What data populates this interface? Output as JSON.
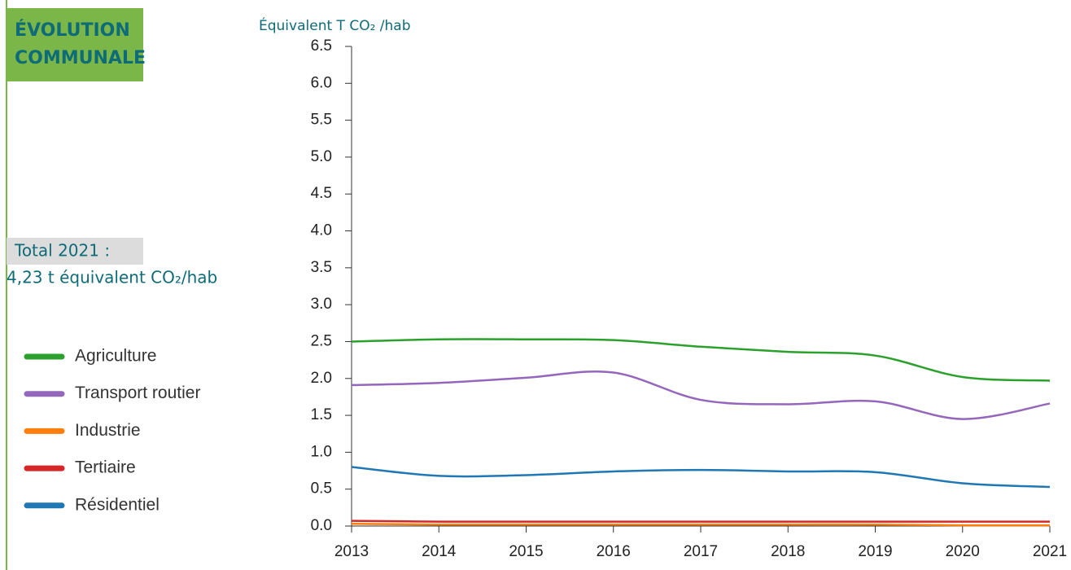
{
  "chart_data": {
    "type": "line",
    "title": "ÉVOLUTION COMMUNALE",
    "total_label": "Total 2021 :",
    "total_value": "4,23 t équivalent CO₂/hab",
    "y_label": "Équivalent T CO₂ /hab",
    "x": [
      2013,
      2014,
      2015,
      2016,
      2017,
      2018,
      2019,
      2020,
      2021
    ],
    "xlim": [
      2013,
      2021
    ],
    "xticks": [
      2013,
      2014,
      2015,
      2016,
      2017,
      2018,
      2019,
      2020,
      2021
    ],
    "ylim": [
      0,
      6.5
    ],
    "yticks": [
      {
        "value": 0,
        "label": "0.0"
      },
      0.5,
      {
        "value": 1,
        "label": "1.0"
      },
      1.5,
      {
        "value": 2,
        "label": "2.0"
      },
      2.5,
      {
        "value": 3,
        "label": "3.0"
      },
      3.5,
      {
        "value": 4,
        "label": "4.0"
      },
      4.5,
      {
        "value": 5,
        "label": "5.0"
      },
      5.5,
      {
        "value": 6,
        "label": "6.0"
      },
      6.5
    ],
    "series": [
      {
        "name": "Agriculture",
        "color": "#2ca02c",
        "values": [
          2.5,
          2.53,
          2.53,
          2.52,
          2.43,
          2.36,
          2.31,
          2.02,
          1.97
        ]
      },
      {
        "name": "Transport routier",
        "color": "#9467bd",
        "values": [
          1.91,
          1.94,
          2.01,
          2.08,
          1.71,
          1.65,
          1.69,
          1.45,
          1.66
        ]
      },
      {
        "name": "Industrie",
        "color": "#ff7f0e",
        "values": [
          0.03,
          0.02,
          0.02,
          0.02,
          0.02,
          0.02,
          0.02,
          0.01,
          0.01
        ]
      },
      {
        "name": "Tertiaire",
        "color": "#d62728",
        "values": [
          0.07,
          0.06,
          0.06,
          0.06,
          0.06,
          0.06,
          0.06,
          0.06,
          0.06
        ]
      },
      {
        "name": "Résidentiel",
        "color": "#1f77b4",
        "values": [
          0.8,
          0.68,
          0.69,
          0.74,
          0.76,
          0.74,
          0.73,
          0.58,
          0.53
        ]
      }
    ]
  }
}
